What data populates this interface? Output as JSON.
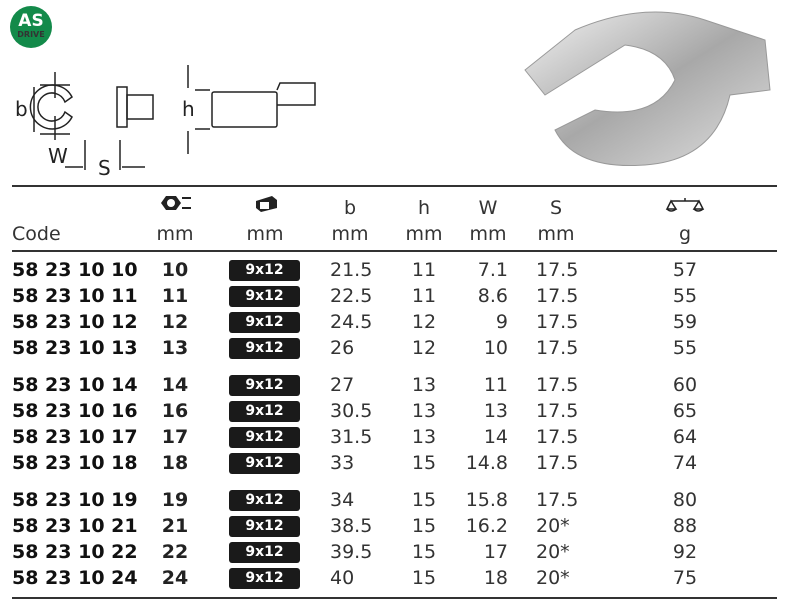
{
  "logo": {
    "line1": "AS",
    "line2": "DRIVE",
    "color": "#138a4a"
  },
  "diagram": {
    "labels": {
      "b": "b",
      "w": "W",
      "s": "S",
      "h": "h"
    }
  },
  "header": {
    "code": "Code",
    "size_unit": "mm",
    "drive_unit": "mm",
    "b": "b",
    "b_unit": "mm",
    "h": "h",
    "h_unit": "mm",
    "w": "W",
    "w_unit": "mm",
    "s": "S",
    "s_unit": "mm",
    "weight_unit": "g",
    "icons": [
      "wrench-size-icon",
      "square-drive-icon",
      "scale-icon"
    ]
  },
  "groups": [
    [
      {
        "code": "58 23 10 10",
        "size": "10",
        "drive": "9x12",
        "b": "21.5",
        "h": "11",
        "w": "7.1",
        "s": "17.5",
        "g": "57"
      },
      {
        "code": "58 23 10 11",
        "size": "11",
        "drive": "9x12",
        "b": "22.5",
        "h": "11",
        "w": "8.6",
        "s": "17.5",
        "g": "55"
      },
      {
        "code": "58 23 10 12",
        "size": "12",
        "drive": "9x12",
        "b": "24.5",
        "h": "12",
        "w": "9",
        "s": "17.5",
        "g": "59"
      },
      {
        "code": "58 23 10 13",
        "size": "13",
        "drive": "9x12",
        "b": "26",
        "h": "12",
        "w": "10",
        "s": "17.5",
        "g": "55"
      }
    ],
    [
      {
        "code": "58 23 10 14",
        "size": "14",
        "drive": "9x12",
        "b": "27",
        "h": "13",
        "w": "11",
        "s": "17.5",
        "g": "60"
      },
      {
        "code": "58 23 10 16",
        "size": "16",
        "drive": "9x12",
        "b": "30.5",
        "h": "13",
        "w": "13",
        "s": "17.5",
        "g": "65"
      },
      {
        "code": "58 23 10 17",
        "size": "17",
        "drive": "9x12",
        "b": "31.5",
        "h": "13",
        "w": "14",
        "s": "17.5",
        "g": "64"
      },
      {
        "code": "58 23 10 18",
        "size": "18",
        "drive": "9x12",
        "b": "33",
        "h": "15",
        "w": "14.8",
        "s": "17.5",
        "g": "74"
      }
    ],
    [
      {
        "code": "58 23 10 19",
        "size": "19",
        "drive": "9x12",
        "b": "34",
        "h": "15",
        "w": "15.8",
        "s": "17.5",
        "g": "80"
      },
      {
        "code": "58 23 10 21",
        "size": "21",
        "drive": "9x12",
        "b": "38.5",
        "h": "15",
        "w": "16.2",
        "s": "20*",
        "g": "88"
      },
      {
        "code": "58 23 10 22",
        "size": "22",
        "drive": "9x12",
        "b": "39.5",
        "h": "15",
        "w": "17",
        "s": "20*",
        "g": "92"
      },
      {
        "code": "58 23 10 24",
        "size": "24",
        "drive": "9x12",
        "b": "40",
        "h": "15",
        "w": "18",
        "s": "20*",
        "g": "75"
      }
    ]
  ]
}
